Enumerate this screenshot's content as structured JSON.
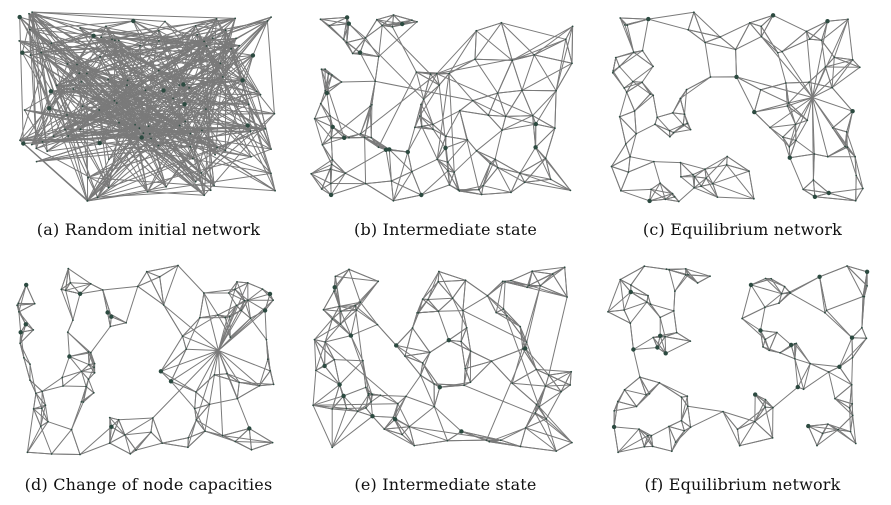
{
  "figure": {
    "panels": [
      {
        "id": "a",
        "caption": "(a) Random initial network",
        "state": "random"
      },
      {
        "id": "b",
        "caption": "(b) Intermediate state",
        "state": "intermediate"
      },
      {
        "id": "c",
        "caption": "(c) Equilibrium network",
        "state": "equilibrium",
        "hub": true
      },
      {
        "id": "d",
        "caption": "(d) Change of node capacities",
        "state": "equilibrium",
        "hub": true
      },
      {
        "id": "e",
        "caption": "(e) Intermediate state",
        "state": "intermediate"
      },
      {
        "id": "f",
        "caption": "(f) Equilibrium network",
        "state": "equilibrium",
        "hub": false
      }
    ]
  },
  "colors": {
    "edge": "#7a7a7a",
    "node": "#2c4a40",
    "background": "#ffffff"
  }
}
